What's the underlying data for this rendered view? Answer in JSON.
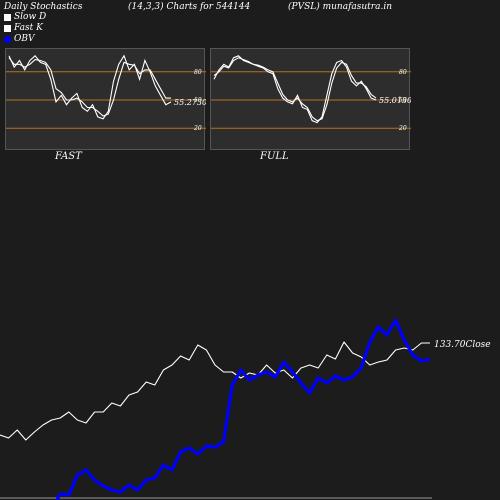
{
  "header": {
    "title": "Daily Stochastics",
    "params": "(14,3,3) Charts for 544144",
    "symbol": "(PVSL) munafasutra.in"
  },
  "legend": [
    {
      "label": "Slow  D",
      "color": "#ffffff"
    },
    {
      "label": "Fast K",
      "color": "#ffffff"
    },
    {
      "label": "OBV",
      "color": "#0000ff"
    }
  ],
  "panels": [
    {
      "label": "FAST",
      "value_label": "55.2730",
      "ticks": [
        "80",
        "50",
        "20"
      ]
    },
    {
      "label": "FULL",
      "value_label": "55.0130",
      "ticks": [
        "80",
        "50",
        "20"
      ]
    }
  ],
  "close_label": "133.70Close",
  "chart_data": [
    {
      "type": "line",
      "title": "FAST",
      "ylim": [
        0,
        100
      ],
      "levels": [
        80,
        50,
        20
      ],
      "series": [
        {
          "name": "Fast K",
          "values": [
            97,
            85,
            92,
            82,
            92,
            97,
            90,
            88,
            72,
            48,
            55,
            45,
            52,
            57,
            42,
            38,
            45,
            32,
            30,
            38,
            70,
            88,
            97,
            82,
            88,
            72,
            92,
            80,
            65,
            55,
            45,
            48
          ]
        },
        {
          "name": "Slow  D",
          "values": [
            95,
            88,
            88,
            85,
            88,
            93,
            92,
            90,
            82,
            62,
            58,
            50,
            50,
            52,
            48,
            42,
            42,
            38,
            33,
            35,
            50,
            72,
            90,
            88,
            87,
            78,
            82,
            82,
            72,
            62,
            52,
            52
          ]
        }
      ]
    },
    {
      "type": "line",
      "title": "FULL",
      "ylim": [
        0,
        100
      ],
      "levels": [
        80,
        50,
        20
      ],
      "series": [
        {
          "name": "Fast K",
          "values": [
            72,
            82,
            88,
            85,
            95,
            97,
            92,
            90,
            88,
            86,
            84,
            80,
            78,
            62,
            52,
            48,
            46,
            55,
            42,
            40,
            28,
            26,
            32,
            55,
            78,
            90,
            92,
            85,
            70,
            65,
            70,
            62,
            52,
            50
          ]
        },
        {
          "name": "Slow  D",
          "values": [
            76,
            80,
            86,
            84,
            92,
            95,
            93,
            91,
            88,
            87,
            85,
            82,
            80,
            68,
            56,
            50,
            48,
            52,
            46,
            42,
            32,
            28,
            30,
            45,
            68,
            84,
            90,
            88,
            76,
            68,
            68,
            64,
            56,
            52
          ]
        }
      ]
    },
    {
      "type": "line",
      "title": "",
      "series": [
        {
          "name": "Close",
          "color": "#ffffff",
          "values": [
            435,
            438,
            430,
            440,
            432,
            425,
            420,
            418,
            412,
            420,
            423,
            412,
            412,
            403,
            406,
            395,
            392,
            382,
            385,
            370,
            365,
            356,
            360,
            345,
            350,
            365,
            372,
            372,
            378,
            373,
            375,
            365,
            373,
            370,
            378,
            368,
            365,
            368,
            355,
            359,
            342,
            353,
            357,
            365,
            362,
            360,
            350,
            348,
            350,
            343,
            343
          ]
        },
        {
          "name": "OBV",
          "color": "#0000ff",
          "values": [
            510,
            510,
            510,
            510,
            510,
            510,
            510,
            494,
            495,
            475,
            470,
            480,
            486,
            490,
            492,
            485,
            490,
            480,
            478,
            465,
            470,
            452,
            448,
            454,
            446,
            447,
            442,
            385,
            370,
            380,
            375,
            372,
            377,
            362,
            372,
            383,
            393,
            378,
            383,
            376,
            380,
            377,
            368,
            342,
            327,
            335,
            320,
            340,
            355,
            361,
            359
          ]
        }
      ]
    }
  ]
}
